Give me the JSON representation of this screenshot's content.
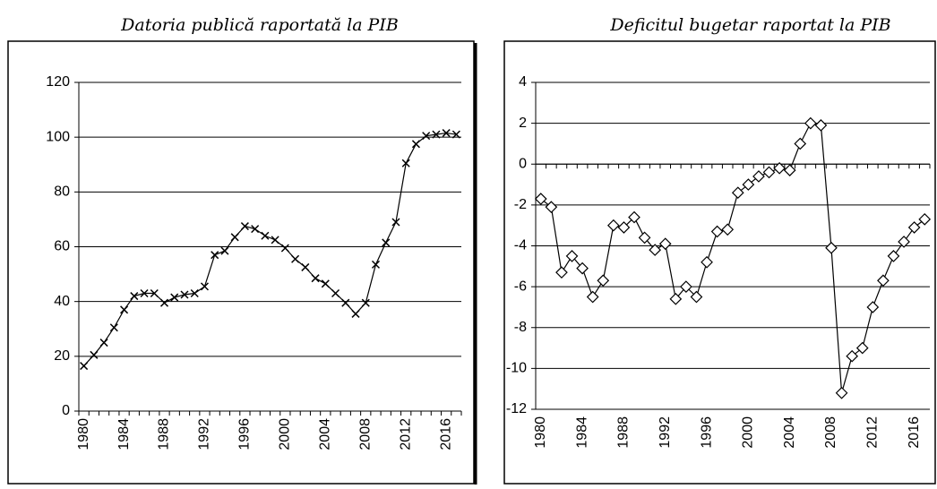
{
  "chart_data": [
    {
      "type": "line",
      "title": "Datoria publică raportată la PIB",
      "marker": "x",
      "color": "#000000",
      "categories": [
        "1980",
        null,
        null,
        null,
        "1984",
        null,
        null,
        null,
        "1988",
        null,
        null,
        null,
        "1992",
        null,
        null,
        null,
        "1996",
        null,
        null,
        null,
        "2000",
        null,
        null,
        null,
        "2004",
        null,
        null,
        null,
        "2008",
        null,
        null,
        null,
        "2012",
        null,
        null,
        null,
        "2016",
        null
      ],
      "values": [
        16.5,
        20.5,
        25,
        30.5,
        37,
        42,
        43,
        43,
        39.5,
        41.5,
        42.5,
        43,
        45.5,
        57,
        58.5,
        63.5,
        67.5,
        66.5,
        64,
        62.5,
        59.5,
        55.5,
        52.5,
        48.5,
        46.5,
        43,
        39.5,
        35.5,
        39.5,
        53.5,
        61.5,
        69,
        90.5,
        97.5,
        100.5,
        101,
        101.5,
        101
      ],
      "ylim": [
        0,
        120
      ],
      "yticks": [
        0,
        20,
        40,
        60,
        80,
        100,
        120
      ],
      "grid": true
    },
    {
      "type": "line",
      "title": "Deficitul bugetar raportat la PIB",
      "marker": "diamond",
      "color": "#000000",
      "categories": [
        "1980",
        null,
        null,
        null,
        "1984",
        null,
        null,
        null,
        "1988",
        null,
        null,
        null,
        "1992",
        null,
        null,
        null,
        "1996",
        null,
        null,
        null,
        "2000",
        null,
        null,
        null,
        "2004",
        null,
        null,
        null,
        "2008",
        null,
        null,
        null,
        "2012",
        null,
        null,
        null,
        "2016",
        null
      ],
      "values": [
        -1.7,
        -2.1,
        -5.3,
        -4.5,
        -5.1,
        -6.5,
        -5.7,
        -3,
        -3.1,
        -2.6,
        -3.6,
        -4.2,
        -3.9,
        -6.6,
        -6.0,
        -6.5,
        -4.8,
        -3.3,
        -3.2,
        -1.4,
        -1.0,
        -0.6,
        -0.4,
        -0.2,
        -0.3,
        1.0,
        2.0,
        1.9,
        -4.1,
        -11.2,
        -9.4,
        -9.0,
        -7.0,
        -5.7,
        -4.5,
        -3.8,
        -3.1,
        -2.7
      ],
      "ylim": [
        -12,
        4
      ],
      "yticks": [
        -12,
        -10,
        -8,
        -6,
        -4,
        -2,
        0,
        2,
        4
      ],
      "grid": true
    }
  ]
}
